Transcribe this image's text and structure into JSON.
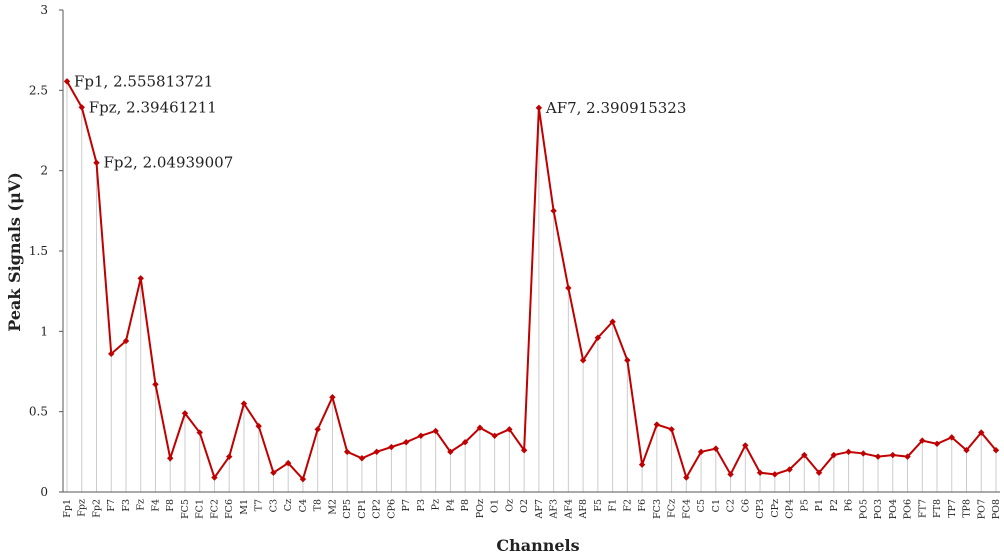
{
  "chart_data": {
    "type": "line",
    "title": "",
    "xlabel": "Channels",
    "ylabel": "Peak Signals (μV)",
    "ylim": [
      0,
      3
    ],
    "yticks": [
      0,
      0.5,
      1,
      1.5,
      2,
      2.5,
      3
    ],
    "grid": "vertical drop lines at each channel",
    "legend": "none",
    "colors": {
      "line": "#c00000",
      "drop_line": "#cccccc",
      "axis": "#555555"
    },
    "categories": [
      "Fp1",
      "Fpz",
      "Fp2",
      "F7",
      "F3",
      "Fz",
      "F4",
      "F8",
      "FC5",
      "FC1",
      "FC2",
      "FC6",
      "M1",
      "T7",
      "C3",
      "Cz",
      "C4",
      "T8",
      "M2",
      "CP5",
      "CP1",
      "CP2",
      "CP6",
      "P7",
      "P3",
      "Pz",
      "P4",
      "P8",
      "POz",
      "O1",
      "Oz",
      "O2",
      "AF7",
      "AF3",
      "AF4",
      "AF8",
      "F5",
      "F1",
      "F2",
      "F6",
      "FC3",
      "FCz",
      "FC4",
      "C5",
      "C1",
      "C2",
      "C6",
      "CP3",
      "CPz",
      "CP4",
      "P5",
      "P1",
      "P2",
      "P6",
      "PO5",
      "PO3",
      "PO4",
      "PO6",
      "FT7",
      "FT8",
      "TP7",
      "TP8",
      "PO7",
      "PO8"
    ],
    "series": [
      {
        "values": [
          2.555813721,
          2.39461211,
          2.04939007,
          0.86,
          0.94,
          1.33,
          0.67,
          0.21,
          0.49,
          0.37,
          0.09,
          0.22,
          0.55,
          0.41,
          0.12,
          0.18,
          0.08,
          0.39,
          0.59,
          0.25,
          0.21,
          0.25,
          0.28,
          0.31,
          0.35,
          0.38,
          0.25,
          0.31,
          0.4,
          0.35,
          0.39,
          0.26,
          2.390915323,
          1.75,
          1.27,
          0.82,
          0.96,
          1.06,
          0.82,
          0.17,
          0.42,
          0.39,
          0.09,
          0.25,
          0.27,
          0.11,
          0.29,
          0.12,
          0.11,
          0.14,
          0.23,
          0.12,
          0.23,
          0.25,
          0.24,
          0.22,
          0.23,
          0.22,
          0.32,
          0.3,
          0.34,
          0.26,
          0.37,
          0.26
        ]
      }
    ],
    "annotations": [
      {
        "index": 0,
        "text": "Fp1, 2.555813721"
      },
      {
        "index": 1,
        "text": "Fpz, 2.39461211"
      },
      {
        "index": 2,
        "text": "Fp2, 2.04939007"
      },
      {
        "index": 32,
        "text": "AF7, 2.390915323"
      }
    ]
  }
}
